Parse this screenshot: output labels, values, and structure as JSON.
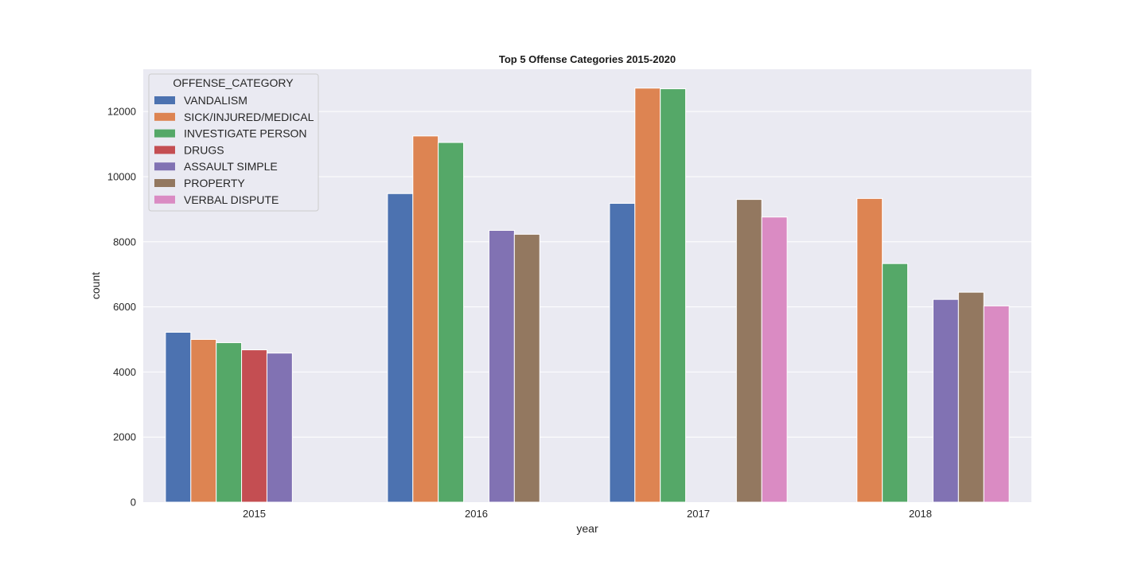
{
  "chart_data": {
    "type": "bar",
    "title": "Top 5 Offense Categories 2015-2020",
    "xlabel": "year",
    "ylabel": "count",
    "categories": [
      "2015",
      "2016",
      "2017",
      "2018"
    ],
    "ylim": [
      0,
      13300
    ],
    "yticks": [
      0,
      2000,
      4000,
      6000,
      8000,
      10000,
      12000
    ],
    "grid": true,
    "legend": {
      "title": "OFFENSE_CATEGORY",
      "placement": "top-left"
    },
    "series": [
      {
        "name": "VANDALISM",
        "color": "#4c72b0",
        "values": [
          5220,
          9480,
          9180,
          null
        ]
      },
      {
        "name": "SICK/INJURED/MEDICAL",
        "color": "#dd8452",
        "values": [
          5000,
          11250,
          12720,
          9330
        ]
      },
      {
        "name": "INVESTIGATE PERSON",
        "color": "#55a868",
        "values": [
          4900,
          11050,
          12700,
          7330
        ]
      },
      {
        "name": "DRUGS",
        "color": "#c44e52",
        "values": [
          4680,
          null,
          null,
          null
        ]
      },
      {
        "name": "ASSAULT SIMPLE",
        "color": "#8172b3",
        "values": [
          4580,
          8350,
          null,
          6230
        ]
      },
      {
        "name": "PROPERTY",
        "color": "#937860",
        "values": [
          null,
          8230,
          9300,
          6450
        ]
      },
      {
        "name": "VERBAL DISPUTE",
        "color": "#da8bc3",
        "values": [
          null,
          null,
          8760,
          6030
        ]
      }
    ]
  }
}
